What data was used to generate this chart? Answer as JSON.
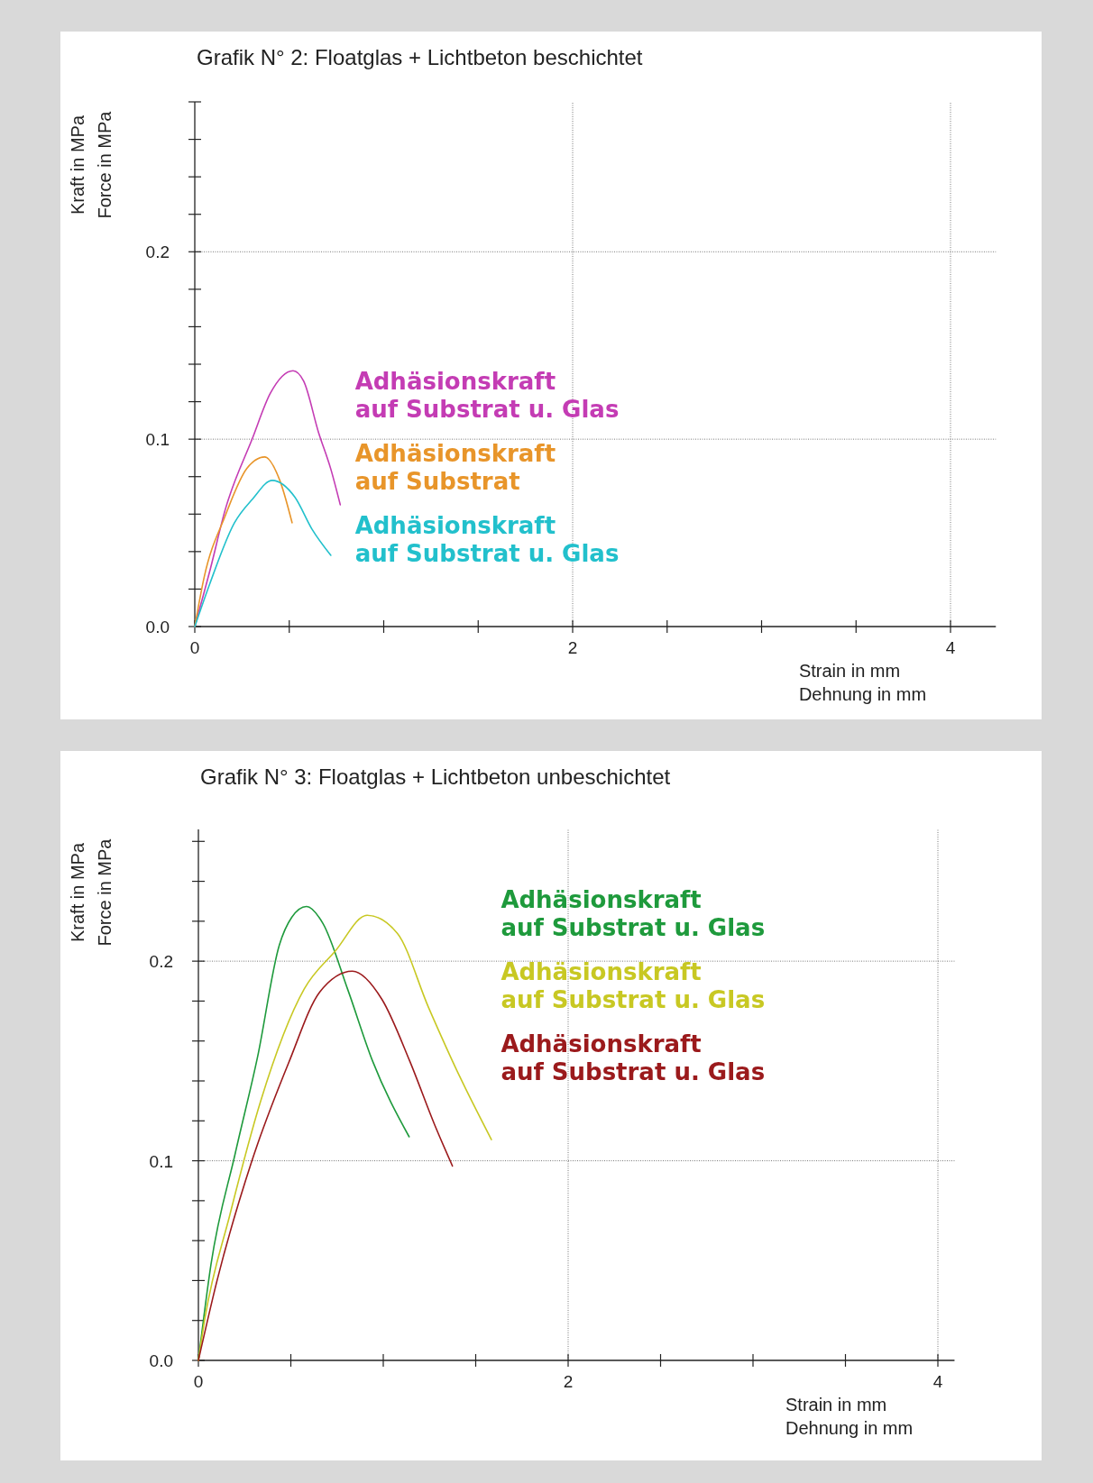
{
  "chart_data": [
    {
      "type": "line",
      "title": "Grafik N° 2: Floatglas  + Lichtbeton beschichtet",
      "xlabel": "Strain in mm\nDehnung in mm",
      "ylabel": "Kraft in MPa\nForce in MPa",
      "xlim": [
        0,
        4.24
      ],
      "ylim": [
        0,
        0.28
      ],
      "xticks": [
        0,
        {
          "value": 0.5,
          "label": null
        },
        {
          "value": 1,
          "label": null
        },
        {
          "value": 1.5,
          "label": null
        },
        2,
        {
          "value": 2.5,
          "label": null
        },
        {
          "value": 3,
          "label": null
        },
        {
          "value": 3.5,
          "label": null
        },
        4
      ],
      "yticks": [
        {
          "value": 0,
          "label": "0.0"
        },
        {
          "value": 0.02,
          "label": null
        },
        {
          "value": 0.04,
          "label": null
        },
        {
          "value": 0.06,
          "label": null
        },
        {
          "value": 0.08,
          "label": null
        },
        {
          "value": 0.1,
          "label": "0.1"
        },
        {
          "value": 0.12,
          "label": null
        },
        {
          "value": 0.14,
          "label": null
        },
        {
          "value": 0.16,
          "label": null
        },
        {
          "value": 0.18,
          "label": null
        },
        {
          "value": 0.2,
          "label": "0.2"
        },
        {
          "value": 0.22,
          "label": null
        },
        {
          "value": 0.24,
          "label": null
        },
        {
          "value": 0.26,
          "label": null
        },
        {
          "value": 0.28,
          "label": null
        }
      ],
      "grid": true,
      "legend": "center",
      "marker": "none",
      "series": [
        {
          "name": "Adhäsionskraft auf Substrat u. Glas",
          "color": "#c43cb4",
          "x": [
            0,
            0.083,
            0.16,
            0.305,
            0.4,
            0.52,
            0.576,
            0.655,
            0.72,
            0.77
          ],
          "values": [
            0,
            0.031,
            0.062,
            0.1004,
            0.1245,
            0.1365,
            0.131,
            0.1036,
            0.084,
            0.065
          ]
        },
        {
          "name": "Adhäsionskraft auf Substrat",
          "color": "#e8952a",
          "x": [
            0,
            0.05,
            0.16,
            0.275,
            0.37,
            0.45,
            0.515
          ],
          "values": [
            0,
            0.0265,
            0.0588,
            0.0843,
            0.0905,
            0.078,
            0.0554
          ]
        },
        {
          "name": "Adhäsionskraft auf Substrat u. Glas",
          "color": "#22c0cc",
          "x": [
            0,
            0.08,
            0.21,
            0.305,
            0.41,
            0.53,
            0.62,
            0.72
          ],
          "values": [
            0,
            0.023,
            0.0554,
            0.068,
            0.078,
            0.069,
            0.052,
            0.038
          ]
        }
      ]
    },
    {
      "type": "line",
      "title": "Grafik N° 3: Floatglas + Lichtbeton unbeschichtet",
      "xlabel": "Strain in mm\nDehnung in mm",
      "ylabel": "Kraft in MPa\nForce in MPa",
      "xlim": [
        0,
        4.09
      ],
      "ylim": [
        0,
        0.266
      ],
      "xticks": [
        0,
        {
          "value": 0.5,
          "label": null
        },
        {
          "value": 1,
          "label": null
        },
        {
          "value": 1.5,
          "label": null
        },
        2,
        {
          "value": 2.5,
          "label": null
        },
        {
          "value": 3,
          "label": null
        },
        {
          "value": 3.5,
          "label": null
        },
        4
      ],
      "yticks": [
        {
          "value": 0,
          "label": "0.0"
        },
        {
          "value": 0.02,
          "label": null
        },
        {
          "value": 0.04,
          "label": null
        },
        {
          "value": 0.06,
          "label": null
        },
        {
          "value": 0.08,
          "label": null
        },
        {
          "value": 0.1,
          "label": "0.1"
        },
        {
          "value": 0.12,
          "label": null
        },
        {
          "value": 0.14,
          "label": null
        },
        {
          "value": 0.16,
          "label": null
        },
        {
          "value": 0.18,
          "label": null
        },
        {
          "value": 0.2,
          "label": "0.2"
        },
        {
          "value": 0.22,
          "label": null
        },
        {
          "value": 0.24,
          "label": null
        },
        {
          "value": 0.26,
          "label": null
        }
      ],
      "grid": true,
      "legend": "top center",
      "marker": "none",
      "series": [
        {
          "name": "Adhäsionskraft auf Substrat u. Glas",
          "color": "#1e9a3c",
          "x": [
            0,
            0.068,
            0.2,
            0.32,
            0.4375,
            0.505,
            0.585,
            0.673,
            0.807,
            0.942,
            1.14
          ],
          "values": [
            0,
            0.048,
            0.104,
            0.152,
            0.208,
            0.222,
            0.2274,
            0.219,
            0.186,
            0.15,
            0.112
          ]
        },
        {
          "name": "Adhäsionskraft auf Substrat u. Glas",
          "color": "#c8c823",
          "x": [
            0,
            0.035,
            0.169,
            0.337,
            0.572,
            0.74,
            0.913,
            1.076,
            1.244,
            1.412,
            1.585
          ],
          "values": [
            0,
            0.021,
            0.0725,
            0.13,
            0.186,
            0.205,
            0.223,
            0.214,
            0.177,
            0.1425,
            0.1106
          ]
        },
        {
          "name": "Adhäsionskraft auf Substrat u. Glas",
          "color": "#9b1a1c",
          "x": [
            0,
            0.101,
            0.286,
            0.488,
            0.656,
            0.833,
            0.992,
            1.143,
            1.278,
            1.374
          ],
          "values": [
            0,
            0.04,
            0.099,
            0.149,
            0.1845,
            0.195,
            0.181,
            0.15,
            0.118,
            0.0974
          ]
        }
      ]
    }
  ]
}
